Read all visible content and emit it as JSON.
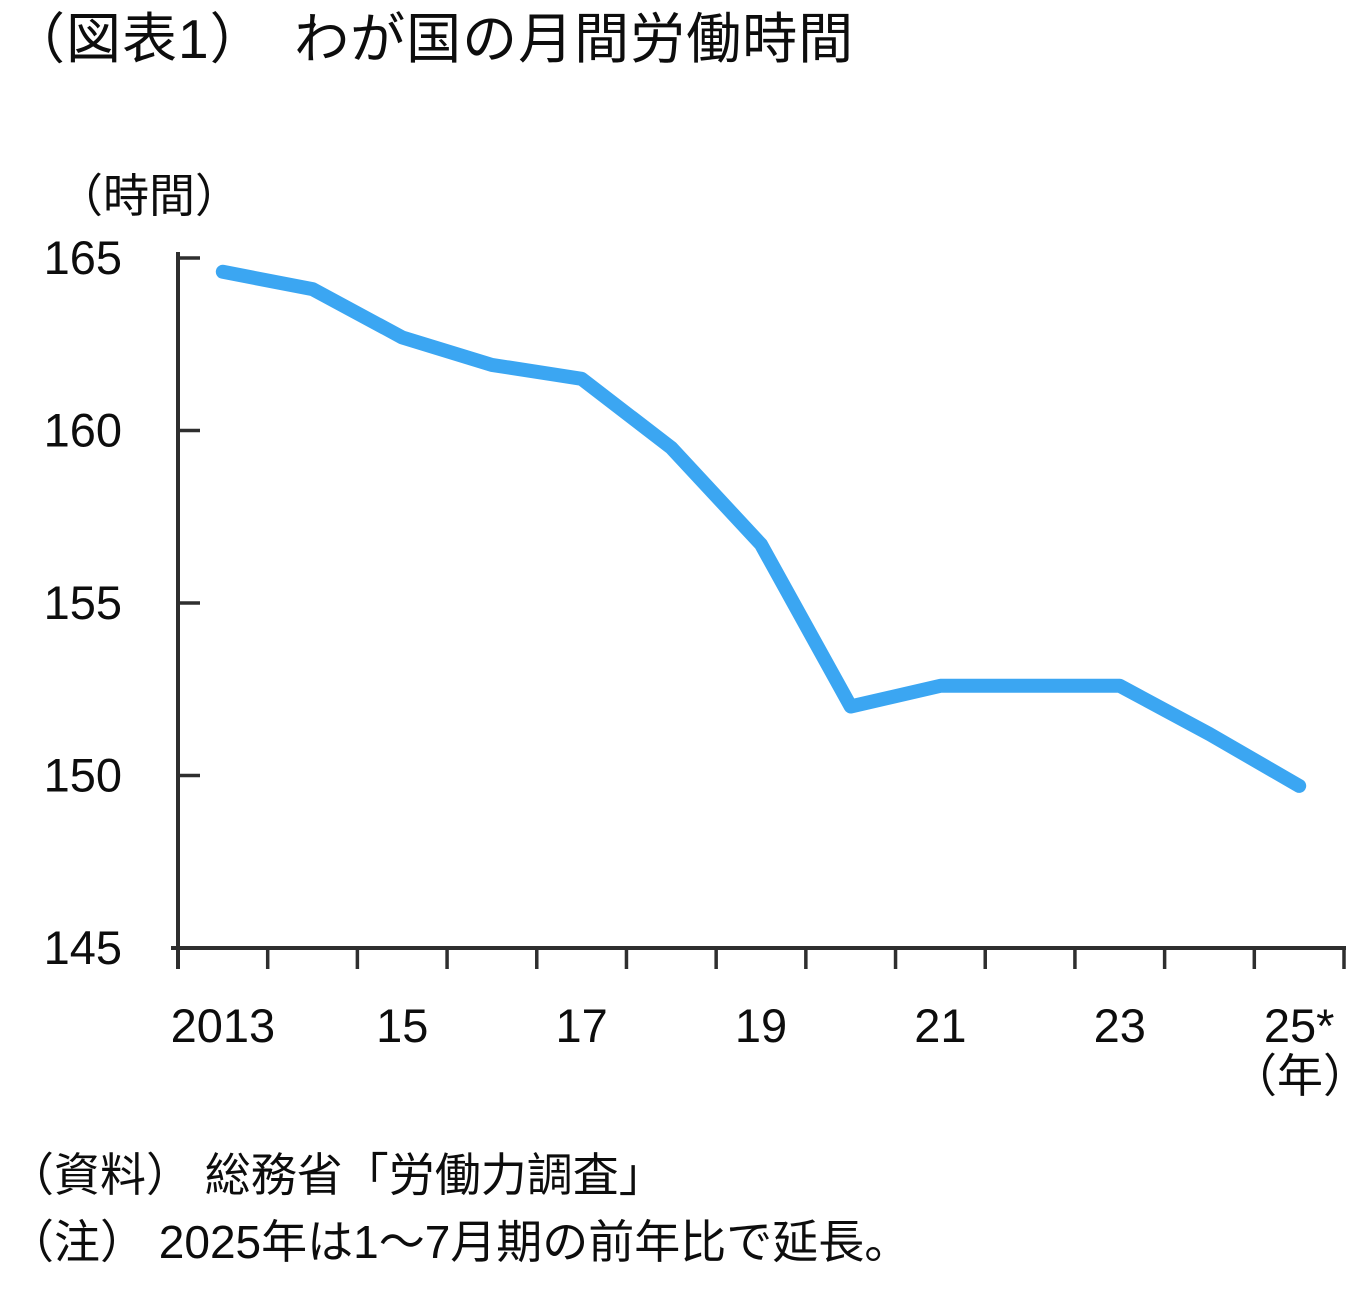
{
  "title": "（図表1）　わが国の月間労働時間",
  "chart_data": {
    "type": "line",
    "title": "（図表1）　わが国の月間労働時間",
    "ylabel_unit": "（時間）",
    "xlabel_unit": "（年）",
    "ylim": [
      145,
      165
    ],
    "yticks": [
      165,
      160,
      155,
      150,
      145
    ],
    "categories": [
      "2013",
      "2014",
      "2015",
      "2016",
      "2017",
      "2018",
      "2019",
      "2020",
      "2021",
      "2022",
      "2023",
      "2024",
      "2025*"
    ],
    "x_tick_labels": [
      "2013",
      "15",
      "17",
      "19",
      "21",
      "23",
      "25*"
    ],
    "series": [
      {
        "name": "月間労働時間",
        "values": [
          164.6,
          164.1,
          162.7,
          161.9,
          161.5,
          159.5,
          156.7,
          152.0,
          152.6,
          152.6,
          152.6,
          151.2,
          149.7
        ]
      }
    ],
    "grid": false,
    "legend": false,
    "line_color": "#3BA6F2",
    "axis_color": "#2E2E2E",
    "text_color": "#0d0d0d"
  },
  "notes": {
    "source": "（資料） 総務省「労働力調査」",
    "note": "（注） 2025年は1～7月期の前年比で延長。"
  }
}
